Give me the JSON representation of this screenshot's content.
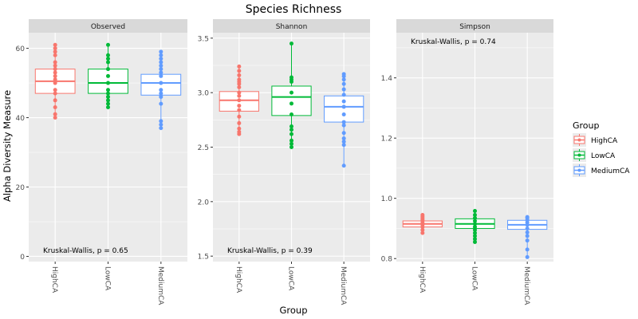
{
  "title": "Species Richness",
  "ylabel": "Alpha Diversity Measure",
  "xlabel": "Group",
  "legend": {
    "title": "Group",
    "placement": "right",
    "items": [
      {
        "label": "HighCA",
        "color": "#F8766D"
      },
      {
        "label": "LowCA",
        "color": "#00BA38"
      },
      {
        "label": "MediumCA",
        "color": "#619CFF"
      }
    ]
  },
  "chart_data": [
    {
      "type": "box",
      "facet": "Observed",
      "categories": [
        "HighCA",
        "LowCA",
        "MediumCA"
      ],
      "ylim": [
        -1.5,
        64.5
      ],
      "yticks": [
        0,
        20,
        40,
        60
      ],
      "ytick_labels": [
        "0",
        "20",
        "40",
        "60"
      ],
      "annotation": "Kruskal-Wallis, p = 0.65",
      "boxes": [
        {
          "q1": 47,
          "median": 50.5,
          "q3": 54,
          "whisker_low": 40,
          "whisker_high": 61,
          "points": [
            40,
            41,
            43,
            45,
            47,
            48,
            50,
            51,
            52,
            53,
            54,
            55,
            56,
            58,
            59,
            60,
            61
          ]
        },
        {
          "q1": 47,
          "median": 50,
          "q3": 54,
          "whisker_low": 43,
          "whisker_high": 61,
          "points": [
            43,
            44,
            45,
            46,
            47,
            48,
            50,
            52,
            54,
            56,
            57,
            58,
            61
          ]
        },
        {
          "q1": 46.5,
          "median": 50,
          "q3": 52.5,
          "whisker_low": 37,
          "whisker_high": 59,
          "points": [
            37,
            38,
            39,
            44,
            46,
            47,
            48,
            50,
            52,
            53,
            54,
            55,
            56,
            57,
            58,
            59
          ]
        }
      ]
    },
    {
      "type": "box",
      "facet": "Shannon",
      "categories": [
        "HighCA",
        "LowCA",
        "MediumCA"
      ],
      "ylim": [
        1.45,
        3.55
      ],
      "yticks": [
        1.5,
        2.0,
        2.5,
        3.0,
        3.5
      ],
      "ytick_labels": [
        "1.5",
        "2.0",
        "2.5",
        "3.0",
        "3.5"
      ],
      "annotation": "Kruskal-Wallis, p = 0.39",
      "boxes": [
        {
          "q1": 2.83,
          "median": 2.93,
          "q3": 3.01,
          "whisker_low": 2.62,
          "whisker_high": 3.24,
          "points": [
            2.62,
            2.64,
            2.67,
            2.72,
            2.78,
            2.84,
            2.88,
            2.93,
            2.97,
            3.0,
            3.05,
            3.08,
            3.1,
            3.12,
            3.16,
            3.2,
            3.24
          ]
        },
        {
          "q1": 2.79,
          "median": 2.96,
          "q3": 3.06,
          "whisker_low": 2.5,
          "whisker_high": 3.45,
          "points": [
            2.5,
            2.53,
            2.56,
            2.62,
            2.66,
            2.69,
            2.8,
            2.9,
            3.0,
            3.1,
            3.12,
            3.14,
            3.45
          ]
        },
        {
          "q1": 2.73,
          "median": 2.87,
          "q3": 2.97,
          "whisker_low": 2.33,
          "whisker_high": 3.17,
          "points": [
            2.33,
            2.52,
            2.55,
            2.58,
            2.63,
            2.7,
            2.73,
            2.8,
            2.87,
            2.92,
            2.98,
            3.03,
            3.08,
            3.12,
            3.15,
            3.17
          ]
        }
      ]
    },
    {
      "type": "box",
      "facet": "Simpson",
      "categories": [
        "HighCA",
        "LowCA",
        "MediumCA"
      ],
      "ylim": [
        0.79,
        1.55
      ],
      "yticks": [
        0.8,
        1.0,
        1.2,
        1.4
      ],
      "ytick_labels": [
        "0.8",
        "1.0",
        "1.2",
        "1.4"
      ],
      "annotation": "Kruskal-Wallis, p = 0.74",
      "boxes": [
        {
          "q1": 0.905,
          "median": 0.915,
          "q3": 0.925,
          "whisker_low": 0.885,
          "whisker_high": 0.945,
          "points": [
            0.885,
            0.895,
            0.905,
            0.912,
            0.918,
            0.925,
            0.93,
            0.935,
            0.94,
            0.945
          ]
        },
        {
          "q1": 0.9,
          "median": 0.915,
          "q3": 0.932,
          "whisker_low": 0.855,
          "whisker_high": 0.958,
          "points": [
            0.855,
            0.865,
            0.875,
            0.885,
            0.895,
            0.905,
            0.915,
            0.925,
            0.935,
            0.945,
            0.958
          ]
        },
        {
          "q1": 0.897,
          "median": 0.912,
          "q3": 0.927,
          "whisker_low": 0.805,
          "whisker_high": 0.938,
          "points": [
            0.805,
            0.83,
            0.86,
            0.875,
            0.887,
            0.9,
            0.912,
            0.92,
            0.928,
            0.935,
            0.938
          ]
        }
      ]
    }
  ]
}
